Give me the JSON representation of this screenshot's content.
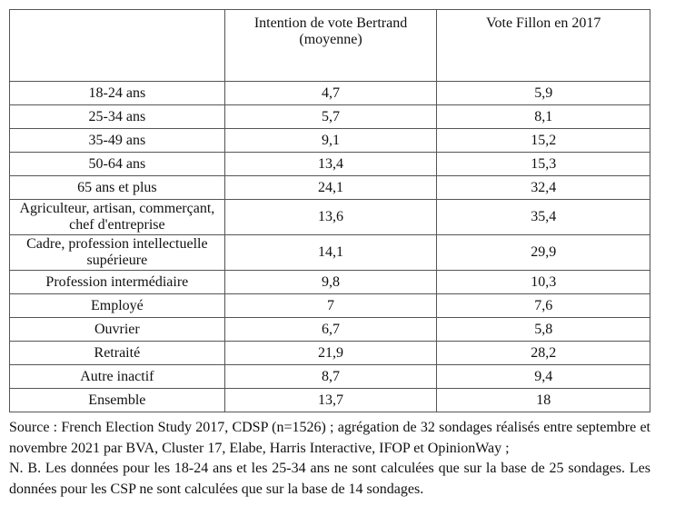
{
  "table": {
    "headers": [
      "",
      "Intention de vote Bertrand (moyenne)",
      "Vote Fillon en 2017"
    ],
    "rows": [
      {
        "label": "18-24 ans",
        "bertrand": "4,7",
        "fillon": "5,9"
      },
      {
        "label": "25-34 ans",
        "bertrand": "5,7",
        "fillon": "8,1"
      },
      {
        "label": "35-49 ans",
        "bertrand": "9,1",
        "fillon": "15,2"
      },
      {
        "label": "50-64 ans",
        "bertrand": "13,4",
        "fillon": "15,3"
      },
      {
        "label": "65 ans et plus",
        "bertrand": "24,1",
        "fillon": "32,4"
      },
      {
        "label": "Agriculteur, artisan, commerçant, chef d'entreprise",
        "bertrand": "13,6",
        "fillon": "35,4"
      },
      {
        "label": "Cadre, profession intellectuelle supérieure",
        "bertrand": "14,1",
        "fillon": "29,9"
      },
      {
        "label": "Profession intermédiaire",
        "bertrand": "9,8",
        "fillon": "10,3"
      },
      {
        "label": "Employé",
        "bertrand": "7",
        "fillon": "7,6"
      },
      {
        "label": "Ouvrier",
        "bertrand": "6,7",
        "fillon": "5,8"
      },
      {
        "label": "Retraité",
        "bertrand": "21,9",
        "fillon": "28,2"
      },
      {
        "label": "Autre inactif",
        "bertrand": "8,7",
        "fillon": "9,4"
      },
      {
        "label": "Ensemble",
        "bertrand": "13,7",
        "fillon": "18"
      }
    ]
  },
  "notes": {
    "source": "Source : French Election Study 2017, CDSP (n=1526) ; agrégation de 32 sondages réalisés entre septembre et novembre 2021 par BVA, Cluster 17, Elabe, Harris Interactive, IFOP et OpinionWay ;",
    "nb": "N. B. Les données pour les 18-24 ans et les 25-34 ans ne sont calculées que sur la base de 25 sondages. Les données pour les CSP ne sont calculées que sur la base de 14 sondages."
  }
}
